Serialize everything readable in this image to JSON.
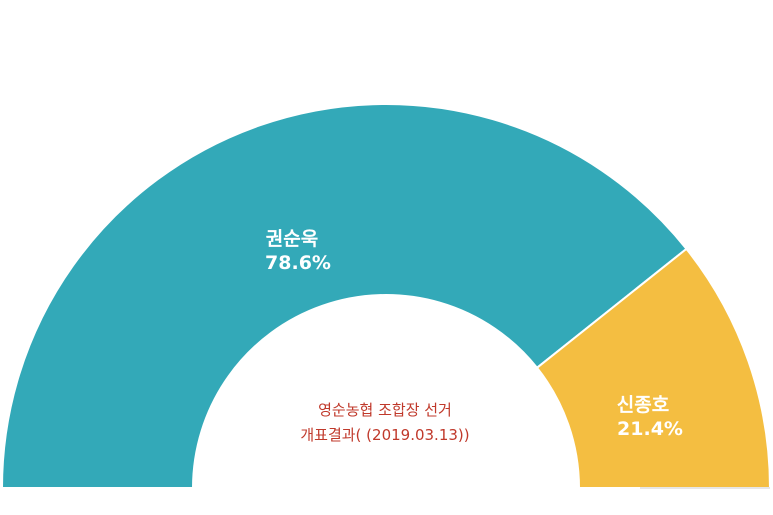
{
  "chart_data": {
    "type": "pie",
    "variant": "semi-donut",
    "title_lines": [
      "영순농협 조합장 선거",
      "개표결과( (2019.03.13))"
    ],
    "slices": [
      {
        "name": "권순욱",
        "value": 78.6,
        "label": "78.6%",
        "color": "#33A9B8"
      },
      {
        "name": "신종호",
        "value": 21.4,
        "label": "21.4%",
        "color": "#F4BE41"
      }
    ]
  }
}
